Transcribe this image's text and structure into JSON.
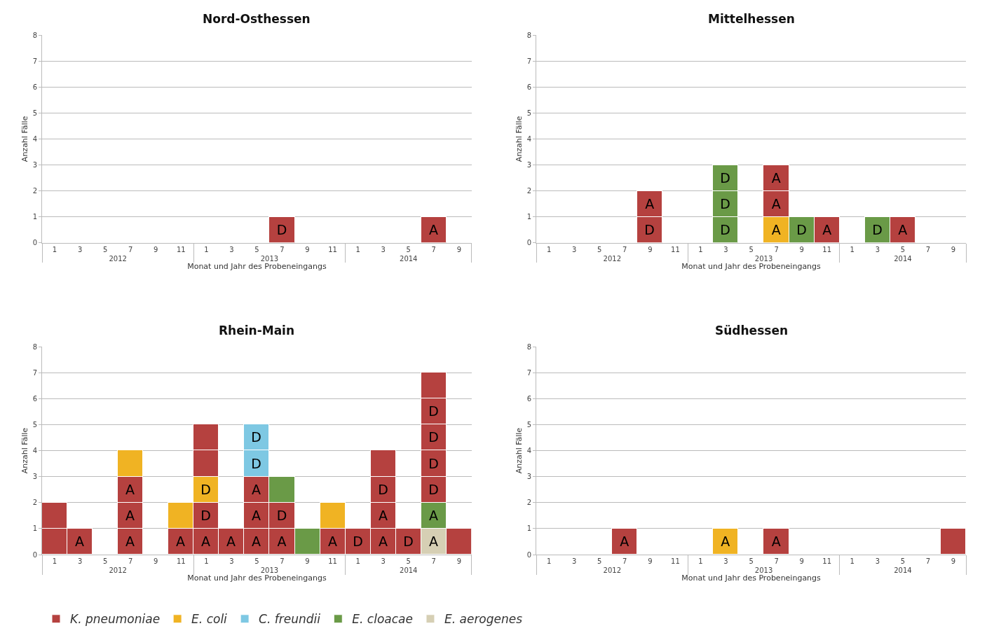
{
  "chart_data": [
    {
      "type": "bar",
      "title": "Nord-Osthessen",
      "xlabel": "Monat und Jahr des Probeneingangs",
      "ylabel": "Anzahl Fälle",
      "stacked": true,
      "grid": "y",
      "ylim": [
        0,
        8
      ],
      "yticks": [
        0,
        1,
        2,
        3,
        4,
        5,
        6,
        7,
        8
      ],
      "annotations": [
        "2012",
        "2013",
        "2014"
      ],
      "categories": [
        "1",
        "3",
        "5",
        "7",
        "9",
        "11",
        "1",
        "3",
        "5",
        "7",
        "9",
        "11",
        "1",
        "3",
        "5",
        "7",
        "9"
      ],
      "series": [
        {
          "values": [
            null,
            null,
            null,
            null,
            null,
            null,
            null,
            null,
            null,
            1,
            null,
            null,
            null,
            null,
            null,
            1,
            null
          ],
          "colors": [
            null,
            null,
            null,
            null,
            null,
            null,
            null,
            null,
            null,
            "#b5413f",
            null,
            null,
            null,
            null,
            null,
            "#b5413f",
            null
          ],
          "value_labels": [
            null,
            null,
            null,
            null,
            null,
            null,
            null,
            null,
            null,
            "D",
            null,
            null,
            null,
            null,
            null,
            "A",
            null
          ]
        }
      ]
    },
    {
      "type": "bar",
      "title": "Mittelhessen",
      "xlabel": "Monat und Jahr des Probeneingangs",
      "ylabel": "Anzahl Fälle",
      "stacked": true,
      "grid": "y",
      "ylim": [
        0,
        8
      ],
      "yticks": [
        0,
        1,
        2,
        3,
        4,
        5,
        6,
        7,
        8
      ],
      "annotations": [
        "2012",
        "2013",
        "2014"
      ],
      "categories": [
        "1",
        "3",
        "5",
        "7",
        "9",
        "11",
        "1",
        "3",
        "5",
        "7",
        "9",
        "11",
        "1",
        "3",
        "5",
        "7",
        "9"
      ],
      "series": [
        {
          "values": [
            null,
            null,
            null,
            null,
            1,
            null,
            null,
            1,
            null,
            1,
            1,
            1,
            null,
            1,
            1,
            null,
            null
          ],
          "colors": [
            null,
            null,
            null,
            null,
            "#b5413f",
            null,
            null,
            "#6a9a47",
            null,
            "#f0b323",
            "#6a9a47",
            "#b5413f",
            null,
            "#6a9a47",
            "#b5413f",
            null,
            null
          ],
          "value_labels": [
            null,
            null,
            null,
            null,
            "D",
            null,
            null,
            "D",
            null,
            "A",
            "D",
            "A",
            null,
            "D",
            "A",
            null,
            null
          ]
        },
        {
          "values": [
            null,
            null,
            null,
            null,
            1,
            null,
            null,
            1,
            null,
            1,
            null,
            null,
            null,
            null,
            null,
            null,
            null
          ],
          "colors": [
            null,
            null,
            null,
            null,
            "#b5413f",
            null,
            null,
            "#6a9a47",
            null,
            "#b5413f",
            null,
            null,
            null,
            null,
            null,
            null,
            null
          ],
          "value_labels": [
            null,
            null,
            null,
            null,
            "A",
            null,
            null,
            "D",
            null,
            "A",
            null,
            null,
            null,
            null,
            null,
            null,
            null
          ]
        },
        {
          "values": [
            null,
            null,
            null,
            null,
            null,
            null,
            null,
            1,
            null,
            1,
            null,
            null,
            null,
            null,
            null,
            null,
            null
          ],
          "colors": [
            null,
            null,
            null,
            null,
            null,
            null,
            null,
            "#6a9a47",
            null,
            "#b5413f",
            null,
            null,
            null,
            null,
            null,
            null,
            null
          ],
          "value_labels": [
            null,
            null,
            null,
            null,
            null,
            null,
            null,
            "D",
            null,
            "A",
            null,
            null,
            null,
            null,
            null,
            null,
            null
          ]
        }
      ]
    },
    {
      "type": "bar",
      "title": "Rhein-Main",
      "xlabel": "Monat und Jahr des Probeneingangs",
      "ylabel": "Anzahl Fälle",
      "stacked": true,
      "grid": "y",
      "ylim": [
        0,
        8
      ],
      "yticks": [
        0,
        1,
        2,
        3,
        4,
        5,
        6,
        7,
        8
      ],
      "legend": "bottom",
      "annotations": [
        "2012",
        "2013",
        "2014"
      ],
      "categories": [
        "1",
        "3",
        "5",
        "7",
        "9",
        "11",
        "1",
        "3",
        "5",
        "7",
        "9",
        "11",
        "1",
        "3",
        "5",
        "7",
        "9"
      ],
      "series": [
        {
          "values": [
            1,
            1,
            null,
            1,
            null,
            1,
            1,
            1,
            1,
            1,
            1,
            1,
            1,
            1,
            1,
            1,
            1
          ],
          "colors": [
            "#b5413f",
            "#b5413f",
            null,
            "#b5413f",
            null,
            "#b5413f",
            "#b5413f",
            "#b5413f",
            "#b5413f",
            "#b5413f",
            "#6a9a47",
            "#b5413f",
            "#b5413f",
            "#b5413f",
            "#b5413f",
            "#d6cfb4",
            "#b5413f"
          ],
          "value_labels": [
            null,
            "A",
            null,
            "A",
            null,
            "A",
            "A",
            "A",
            "A",
            "A",
            null,
            "A",
            "D",
            "A",
            "D",
            "A",
            null
          ]
        },
        {
          "values": [
            1,
            null,
            null,
            1,
            null,
            1,
            1,
            null,
            1,
            1,
            null,
            1,
            null,
            1,
            null,
            1,
            null
          ],
          "colors": [
            "#b5413f",
            null,
            null,
            "#b5413f",
            null,
            "#f0b323",
            "#b5413f",
            null,
            "#b5413f",
            "#b5413f",
            null,
            "#f0b323",
            null,
            "#b5413f",
            null,
            "#6a9a47",
            null
          ],
          "value_labels": [
            null,
            null,
            null,
            "A",
            null,
            null,
            "D",
            null,
            "A",
            "D",
            null,
            null,
            null,
            "A",
            null,
            "A",
            null
          ]
        },
        {
          "values": [
            null,
            null,
            null,
            1,
            null,
            null,
            1,
            null,
            1,
            1,
            null,
            null,
            null,
            1,
            null,
            1,
            null
          ],
          "colors": [
            null,
            null,
            null,
            "#b5413f",
            null,
            null,
            "#f0b323",
            null,
            "#b5413f",
            "#6a9a47",
            null,
            null,
            null,
            "#b5413f",
            null,
            "#b5413f",
            null
          ],
          "value_labels": [
            null,
            null,
            null,
            "A",
            null,
            null,
            "D",
            null,
            "A",
            null,
            null,
            null,
            null,
            "D",
            null,
            "D",
            null
          ]
        },
        {
          "values": [
            null,
            null,
            null,
            1,
            null,
            null,
            1,
            null,
            1,
            null,
            null,
            null,
            null,
            1,
            null,
            1,
            null
          ],
          "colors": [
            null,
            null,
            null,
            "#f0b323",
            null,
            null,
            "#b5413f",
            null,
            "#7ec8e3",
            null,
            null,
            null,
            null,
            "#b5413f",
            null,
            "#b5413f",
            null
          ],
          "value_labels": [
            null,
            null,
            null,
            null,
            null,
            null,
            null,
            null,
            "D",
            null,
            null,
            null,
            null,
            null,
            null,
            "D",
            null
          ]
        },
        {
          "values": [
            null,
            null,
            null,
            null,
            null,
            null,
            1,
            null,
            1,
            null,
            null,
            null,
            null,
            null,
            null,
            1,
            null
          ],
          "colors": [
            null,
            null,
            null,
            null,
            null,
            null,
            "#b5413f",
            null,
            "#7ec8e3",
            null,
            null,
            null,
            null,
            null,
            null,
            "#b5413f",
            null
          ],
          "value_labels": [
            null,
            null,
            null,
            null,
            null,
            null,
            null,
            null,
            "D",
            null,
            null,
            null,
            null,
            null,
            null,
            "D",
            null
          ]
        },
        {
          "values": [
            null,
            null,
            null,
            null,
            null,
            null,
            null,
            null,
            null,
            null,
            null,
            null,
            null,
            null,
            null,
            1,
            null
          ],
          "colors": [
            null,
            null,
            null,
            null,
            null,
            null,
            null,
            null,
            null,
            null,
            null,
            null,
            null,
            null,
            null,
            "#b5413f",
            null
          ],
          "value_labels": [
            null,
            null,
            null,
            null,
            null,
            null,
            null,
            null,
            null,
            null,
            null,
            null,
            null,
            null,
            null,
            "D",
            null
          ]
        },
        {
          "values": [
            null,
            null,
            null,
            null,
            null,
            null,
            null,
            null,
            null,
            null,
            null,
            null,
            null,
            null,
            null,
            1,
            null
          ],
          "colors": [
            null,
            null,
            null,
            null,
            null,
            null,
            null,
            null,
            null,
            null,
            null,
            null,
            null,
            null,
            null,
            "#b5413f",
            null
          ],
          "value_labels": [
            null,
            null,
            null,
            null,
            null,
            null,
            null,
            null,
            null,
            null,
            null,
            null,
            null,
            null,
            null,
            null,
            null
          ]
        },
        {
          "name": "K. pneumoniae",
          "color": "#b5413f",
          "values": [
            null,
            null,
            null,
            null,
            null,
            null,
            null,
            null,
            null,
            null,
            null,
            null,
            null,
            null,
            null,
            null,
            null
          ]
        },
        {
          "name": "E. coli",
          "color": "#f0b323",
          "values": [
            null,
            null,
            null,
            null,
            null,
            null,
            null,
            null,
            null,
            null,
            null,
            null,
            null,
            null,
            null,
            null,
            null
          ]
        },
        {
          "name": "C. freundii",
          "color": "#7ec8e3",
          "values": [
            null,
            null,
            null,
            null,
            null,
            null,
            null,
            null,
            null,
            null,
            null,
            null,
            null,
            null,
            null,
            null,
            null
          ]
        },
        {
          "name": "E. cloacae",
          "color": "#6a9a47",
          "values": [
            null,
            null,
            null,
            null,
            null,
            null,
            null,
            null,
            null,
            null,
            null,
            null,
            null,
            null,
            null,
            null,
            null
          ]
        },
        {
          "name": "E. aerogenes",
          "color": "#d6cfb4",
          "values": [
            null,
            null,
            null,
            null,
            null,
            null,
            null,
            null,
            null,
            null,
            null,
            null,
            null,
            null,
            null,
            null,
            null
          ]
        }
      ]
    },
    {
      "type": "bar",
      "title": "Südhessen",
      "xlabel": "Monat und Jahr des Probeneingangs",
      "ylabel": "Anzahl Fälle",
      "stacked": true,
      "grid": "y",
      "ylim": [
        0,
        8
      ],
      "yticks": [
        0,
        1,
        2,
        3,
        4,
        5,
        6,
        7,
        8
      ],
      "annotations": [
        "2012",
        "2013",
        "2014"
      ],
      "categories": [
        "1",
        "3",
        "5",
        "7",
        "9",
        "11",
        "1",
        "3",
        "5",
        "7",
        "9",
        "11",
        "1",
        "3",
        "5",
        "7",
        "9"
      ],
      "series": [
        {
          "values": [
            null,
            null,
            null,
            1,
            null,
            null,
            null,
            1,
            null,
            1,
            null,
            null,
            null,
            null,
            null,
            null,
            1
          ],
          "colors": [
            null,
            null,
            null,
            "#b5413f",
            null,
            null,
            null,
            "#f0b323",
            null,
            "#b5413f",
            null,
            null,
            null,
            null,
            null,
            null,
            "#b5413f"
          ],
          "value_labels": [
            null,
            null,
            null,
            "A",
            null,
            null,
            null,
            "A",
            null,
            "A",
            null,
            null,
            null,
            null,
            null,
            null,
            null
          ]
        }
      ]
    }
  ]
}
